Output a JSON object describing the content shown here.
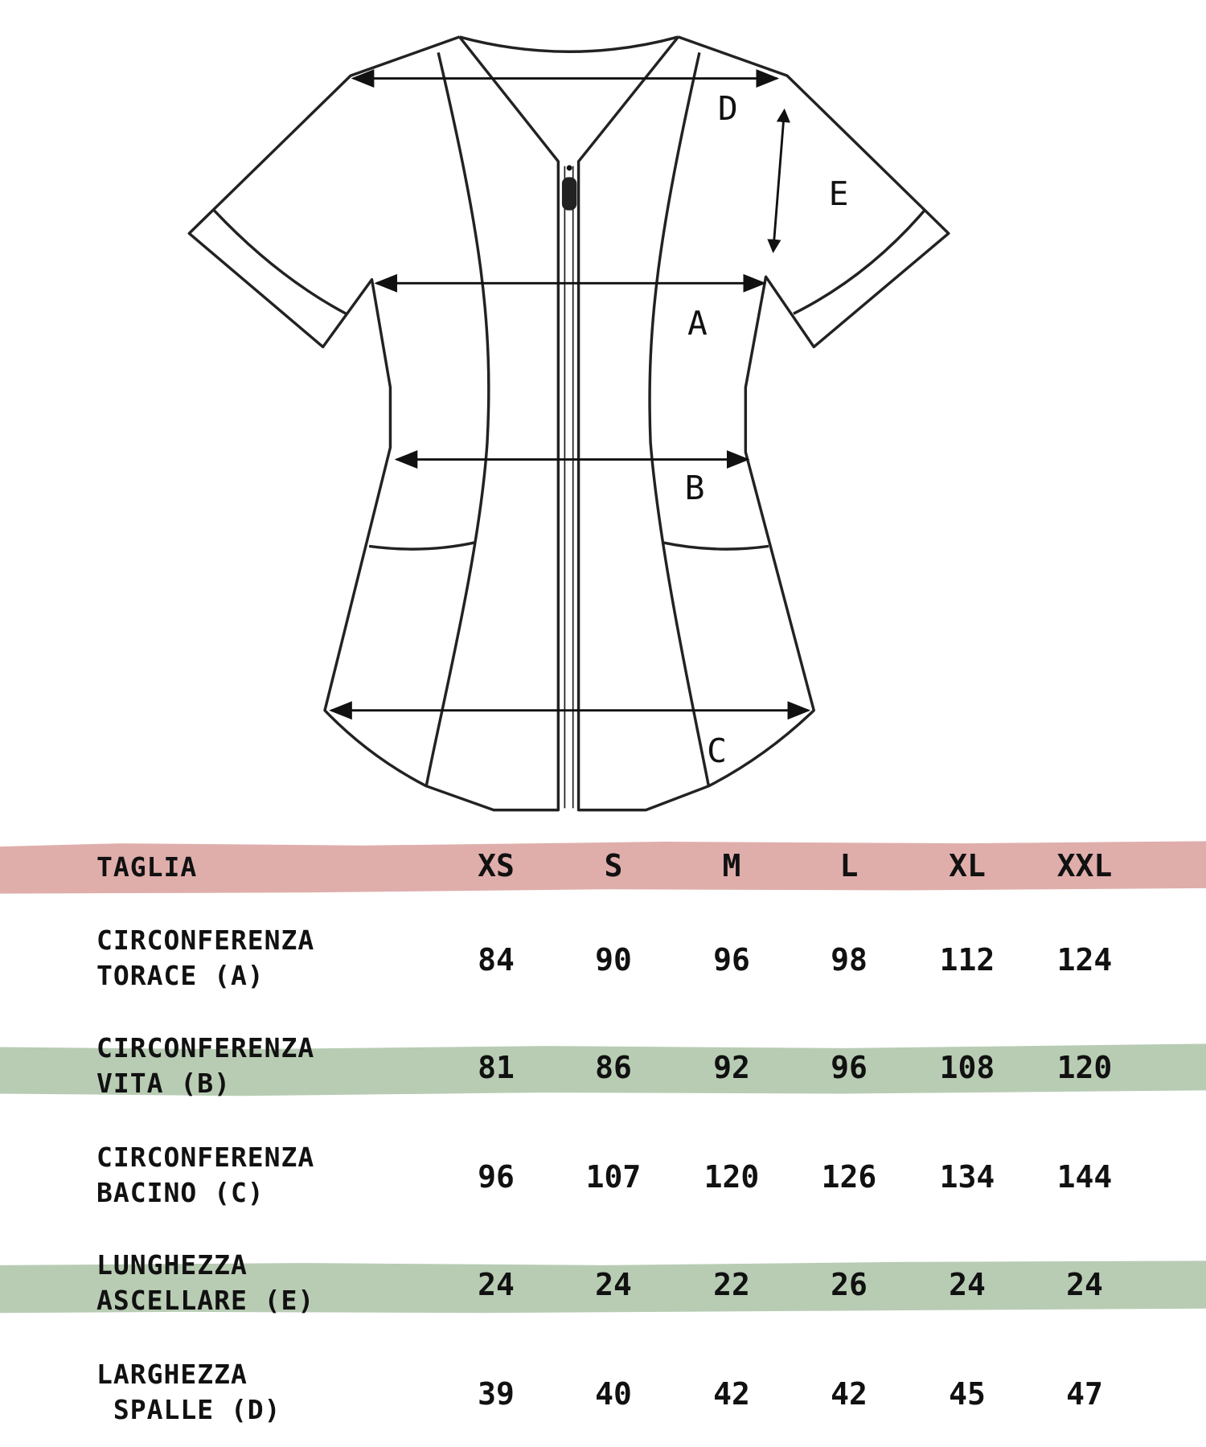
{
  "diagram": {
    "labels": [
      "D",
      "E",
      "A",
      "B",
      "C"
    ],
    "line_color": "#222222"
  },
  "colors": {
    "header_band": "#dfaeab",
    "alt_band": "#b8ccb4"
  },
  "table": {
    "header": {
      "label": "TAGLIA",
      "sizes": [
        "XS",
        "S",
        "M",
        "L",
        "XL",
        "XXL"
      ]
    },
    "rows": [
      {
        "label1": "CIRCONFERENZA",
        "label2": "TORACE (A)",
        "values": [
          "84",
          "90",
          "96",
          "98",
          "112",
          "124"
        ]
      },
      {
        "label1": "CIRCONFERENZA",
        "label2": "VITA (B)",
        "values": [
          "81",
          "86",
          "92",
          "96",
          "108",
          "120"
        ]
      },
      {
        "label1": "CIRCONFERENZA",
        "label2": "BACINO (C)",
        "values": [
          "96",
          "107",
          "120",
          "126",
          "134",
          "144"
        ]
      },
      {
        "label1": "LUNGHEZZA",
        "label2": "ASCELLARE (E)",
        "values": [
          "24",
          "24",
          "22",
          "26",
          "24",
          "24"
        ]
      },
      {
        "label1": "LARGHEZZA",
        "label2": " SPALLE (D)",
        "values": [
          "39",
          "40",
          "42",
          "42",
          "45",
          "47"
        ]
      }
    ]
  }
}
